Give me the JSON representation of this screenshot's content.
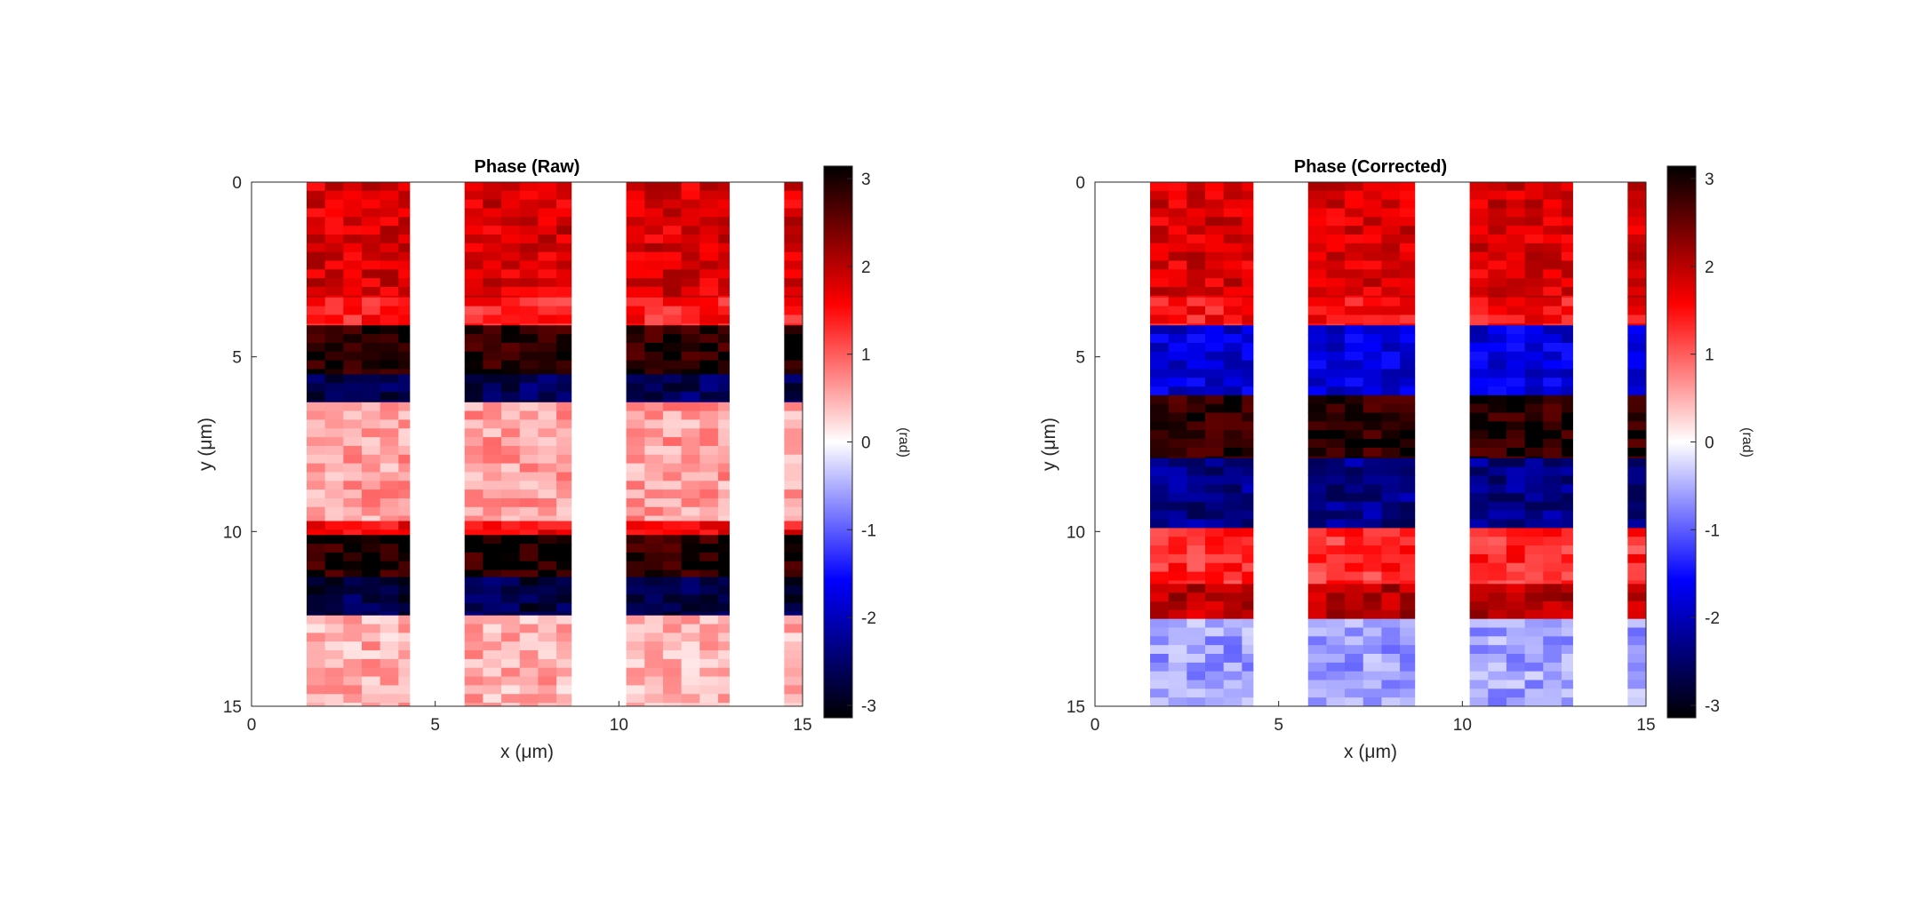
{
  "chart_data": [
    {
      "type": "heatmap",
      "title": "Phase (Raw)",
      "xlabel": "x (μm)",
      "ylabel": "y (μm)",
      "xlim": [
        0,
        15
      ],
      "ylim": [
        0,
        15
      ],
      "y_direction": "reverse",
      "xticks": [
        "0",
        "5",
        "10",
        "15"
      ],
      "yticks": [
        "0",
        "5",
        "10",
        "15"
      ],
      "colorbar": {
        "label": "(rad)",
        "range": [
          -3.14159,
          3.14159
        ],
        "ticks": [
          "-3",
          "-2",
          "-1",
          "0",
          "1",
          "2",
          "3"
        ],
        "colormap": [
          "#000000",
          "#0000ff",
          "#ffffff",
          "#ff0000",
          "#000000"
        ]
      },
      "columns_x_um": [
        [
          1.5,
          4.3
        ],
        [
          5.8,
          8.7
        ],
        [
          10.2,
          13.0
        ],
        [
          14.5,
          15.0
        ]
      ],
      "bands": [
        {
          "y": [
            0.0,
            3.3
          ],
          "value": 1.8
        },
        {
          "y": [
            3.3,
            4.1
          ],
          "value": 1.4
        },
        {
          "y": [
            4.1,
            5.5
          ],
          "value": 2.9
        },
        {
          "y": [
            5.5,
            6.3
          ],
          "value": -2.6
        },
        {
          "y": [
            6.3,
            9.7
          ],
          "value": 0.6
        },
        {
          "y": [
            9.7,
            10.1
          ],
          "value": 1.6
        },
        {
          "y": [
            10.1,
            11.3
          ],
          "value": 2.9
        },
        {
          "y": [
            11.3,
            12.4
          ],
          "value": -2.7
        },
        {
          "y": [
            12.4,
            15.0
          ],
          "value": 0.5
        }
      ]
    },
    {
      "type": "heatmap",
      "title": "Phase (Corrected)",
      "xlabel": "x (μm)",
      "ylabel": "y (μm)",
      "xlim": [
        0,
        15
      ],
      "ylim": [
        0,
        15
      ],
      "y_direction": "reverse",
      "xticks": [
        "0",
        "5",
        "10",
        "15"
      ],
      "yticks": [
        "0",
        "5",
        "10",
        "15"
      ],
      "colorbar": {
        "label": "(rad)",
        "range": [
          -3.14159,
          3.14159
        ],
        "ticks": [
          "-3",
          "-2",
          "-1",
          "0",
          "1",
          "2",
          "3"
        ],
        "colormap": [
          "#000000",
          "#0000ff",
          "#ffffff",
          "#ff0000",
          "#000000"
        ]
      },
      "columns_x_um": [
        [
          1.5,
          4.3
        ],
        [
          5.8,
          8.7
        ],
        [
          10.2,
          13.0
        ],
        [
          14.5,
          15.0
        ]
      ],
      "bands": [
        {
          "y": [
            0.0,
            3.3
          ],
          "value": 1.8
        },
        {
          "y": [
            3.3,
            4.1
          ],
          "value": 1.5
        },
        {
          "y": [
            4.1,
            6.1
          ],
          "value": -1.8
        },
        {
          "y": [
            6.1,
            7.9
          ],
          "value": 2.9
        },
        {
          "y": [
            7.9,
            9.9
          ],
          "value": -2.3
        },
        {
          "y": [
            9.9,
            11.5
          ],
          "value": 1.3
        },
        {
          "y": [
            11.5,
            12.5
          ],
          "value": 2.0
        },
        {
          "y": [
            12.5,
            15.0
          ],
          "value": -0.6
        }
      ]
    }
  ]
}
